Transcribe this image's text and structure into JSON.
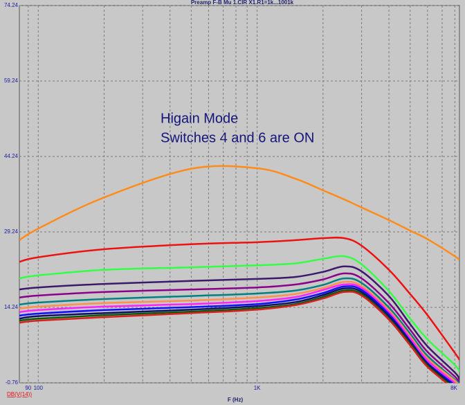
{
  "chart_data": {
    "type": "line",
    "title": "Preamp F-B Mu 1.CIR X1.R1=1k...1001k",
    "x_label": "F (Hz)",
    "expression_label": "DB(V(14))",
    "annotations": [
      "Higain Mode",
      "Switches 4 and 6 are ON"
    ],
    "log_x": true,
    "grid": true,
    "x": [
      82,
      100,
      200,
      500,
      1000,
      1500,
      2000,
      2500,
      3000,
      4000,
      5000,
      6000,
      8000,
      8400
    ],
    "xlim": [
      82,
      8400
    ],
    "xticks": [
      90,
      100,
      {
        "value": 1000,
        "label": "1K"
      },
      {
        "value": 8000,
        "label": "8K"
      }
    ],
    "x_minor_grid": [
      200,
      300,
      400,
      500,
      600,
      700,
      800,
      900,
      2000,
      3000,
      4000,
      5000,
      6000,
      7000
    ],
    "ylim": [
      -0.76,
      74.24
    ],
    "yticks": [
      -0.76,
      14.24,
      29.24,
      44.24,
      59.24,
      74.24
    ],
    "series": [
      {
        "color": "#ff8c1a",
        "values": [
          27.6,
          29.9,
          36.1,
          41.8,
          41.9,
          39.8,
          37.5,
          35.7,
          34.1,
          31.6,
          29.5,
          27.8,
          24.4,
          23.6
        ]
      },
      {
        "color": "#ee1111",
        "values": [
          23.3,
          24.2,
          25.8,
          26.8,
          27.2,
          27.6,
          28.0,
          28.0,
          26.5,
          21.7,
          16.9,
          12.7,
          5.2,
          3.8
        ]
      },
      {
        "color": "#33ff44",
        "values": [
          20.0,
          20.6,
          21.7,
          22.2,
          22.6,
          23.0,
          23.9,
          24.4,
          22.8,
          17.5,
          12.0,
          7.9,
          2.8,
          1.4
        ]
      },
      {
        "color": "#3a1a6a",
        "values": [
          17.8,
          18.2,
          18.9,
          19.5,
          19.9,
          20.3,
          21.3,
          22.4,
          21.4,
          16.5,
          10.9,
          6.5,
          1.3,
          -0.1
        ]
      },
      {
        "color": "#8a008a",
        "values": [
          16.2,
          16.6,
          17.3,
          17.8,
          18.2,
          18.8,
          19.8,
          21.0,
          20.0,
          15.1,
          9.8,
          5.4,
          0.5,
          -0.8
        ]
      },
      {
        "color": "#008080",
        "values": [
          14.8,
          15.2,
          15.9,
          16.5,
          17.0,
          17.6,
          18.7,
          20.0,
          19.1,
          14.2,
          9.0,
          4.6,
          -0.1,
          -0.8
        ]
      },
      {
        "color": "#ff9050",
        "values": [
          14.0,
          14.4,
          15.1,
          15.6,
          16.2,
          16.9,
          18.1,
          19.3,
          18.5,
          13.7,
          8.5,
          4.1,
          -0.3,
          -1.4
        ]
      },
      {
        "color": "#ff22ff",
        "values": [
          13.3,
          13.7,
          14.4,
          14.9,
          15.5,
          16.3,
          17.7,
          18.8,
          18.1,
          13.3,
          8.1,
          3.7,
          -0.8,
          -1.9
        ]
      },
      {
        "color": "#1010ff",
        "values": [
          12.6,
          13.0,
          13.7,
          14.3,
          14.9,
          15.8,
          17.1,
          18.4,
          17.7,
          12.9,
          7.6,
          3.2,
          -1.2,
          -2.3
        ]
      },
      {
        "color": "#101060",
        "values": [
          12.0,
          12.5,
          13.1,
          13.8,
          14.5,
          15.3,
          16.7,
          18.0,
          17.3,
          12.5,
          7.4,
          3.0,
          -1.6,
          -2.7
        ]
      },
      {
        "color": "#0a5a0a",
        "values": [
          11.6,
          12.0,
          12.7,
          13.4,
          14.1,
          14.9,
          16.3,
          17.6,
          16.9,
          12.0,
          7.0,
          2.7,
          -1.9,
          -3.0
        ]
      },
      {
        "color": "#d82020",
        "values": [
          11.2,
          11.6,
          12.3,
          13.1,
          13.8,
          14.7,
          16.0,
          17.3,
          16.6,
          11.8,
          6.7,
          2.4,
          -2.1,
          -3.2
        ]
      }
    ]
  }
}
